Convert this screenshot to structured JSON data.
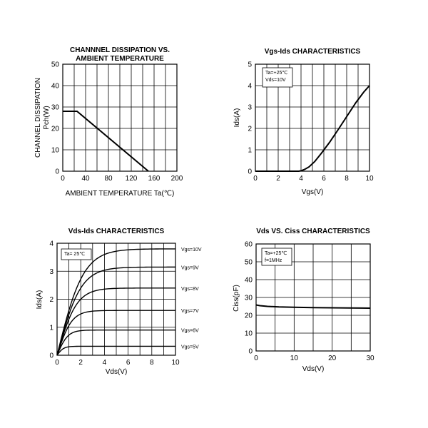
{
  "chart_data": [
    {
      "type": "line",
      "title": [
        "CHANNNEL DISSIPATION VS.",
        "AMBIENT TEMPERATURE"
      ],
      "xlabel": "AMBIENT TEMPERATURE Ta(℃)",
      "ylabel": [
        "CHANNEL DISSIPATION",
        "Pch(W)"
      ],
      "xlim": [
        0,
        200
      ],
      "ylim": [
        0,
        50
      ],
      "xticks": [
        "0",
        "40",
        "80",
        "120",
        "160",
        "200"
      ],
      "yticks": [
        "0",
        "10",
        "20",
        "30",
        "40",
        "50"
      ],
      "grid": true,
      "series": [
        {
          "name": "Pch",
          "x": [
            0,
            25,
            150
          ],
          "y": [
            28,
            28,
            0
          ]
        }
      ]
    },
    {
      "type": "line",
      "title": [
        "Vgs-Ids CHARACTERISTICS"
      ],
      "xlabel": "Vgs(V)",
      "ylabel": [
        "Ids(A)"
      ],
      "xlim": [
        0,
        10
      ],
      "ylim": [
        0,
        5
      ],
      "xticks": [
        "0",
        "2",
        "4",
        "6",
        "8",
        "10"
      ],
      "yticks": [
        "0",
        "1",
        "2",
        "3",
        "4",
        "5"
      ],
      "grid": true,
      "legend": [
        "Ta=+25℃",
        "Vds=10V"
      ],
      "series": [
        {
          "name": "Ids",
          "x": [
            0,
            3.8,
            4,
            4.3,
            4.7,
            5.2,
            5.8,
            6.5,
            7.2,
            8,
            8.8,
            9.5,
            10
          ],
          "y": [
            0,
            0,
            0.02,
            0.08,
            0.2,
            0.45,
            0.85,
            1.35,
            1.9,
            2.55,
            3.2,
            3.7,
            4.0
          ]
        }
      ]
    },
    {
      "type": "line",
      "title": [
        "Vds-Ids CHARACTERISTICS"
      ],
      "xlabel": "Vds(V)",
      "ylabel": [
        "Ids(A)"
      ],
      "xlim": [
        0,
        10
      ],
      "ylim": [
        0,
        4
      ],
      "xticks": [
        "0",
        "2",
        "4",
        "6",
        "8",
        "10"
      ],
      "yticks": [
        "0",
        "1",
        "2",
        "3",
        "4"
      ],
      "grid": true,
      "legend": [
        "Ta= 25℃"
      ],
      "series": [
        {
          "name": "Vgs=10V",
          "sat": 3.8,
          "k": 0.45
        },
        {
          "name": "Vgs=9V",
          "sat": 3.15,
          "k": 0.5
        },
        {
          "name": "Vgs=8V",
          "sat": 2.4,
          "k": 0.6
        },
        {
          "name": "Vgs=7V",
          "sat": 1.6,
          "k": 0.8
        },
        {
          "name": "Vgs=6V",
          "sat": 0.9,
          "k": 1.1
        },
        {
          "name": "Vgs=5V",
          "sat": 0.32,
          "k": 1.8
        }
      ]
    },
    {
      "type": "line",
      "title": [
        "Vds  VS. Ciss CHARACTERISTICS"
      ],
      "xlabel": "Vds(V)",
      "ylabel": [
        "Ciss(pF)"
      ],
      "xlim": [
        0,
        30
      ],
      "ylim": [
        0,
        60
      ],
      "xticks": [
        "0",
        "10",
        "20",
        "30"
      ],
      "yticks": [
        "0",
        "10",
        "20",
        "30",
        "40",
        "50",
        "60"
      ],
      "grid": true,
      "legend": [
        "Ta=+25℃",
        "f=1MHz"
      ],
      "series": [
        {
          "name": "Ciss",
          "x": [
            0,
            1,
            3,
            6,
            10,
            15,
            20,
            25,
            30
          ],
          "y": [
            25.8,
            25.4,
            25.0,
            24.7,
            24.5,
            24.3,
            24.2,
            24.1,
            24.0
          ]
        }
      ]
    }
  ]
}
